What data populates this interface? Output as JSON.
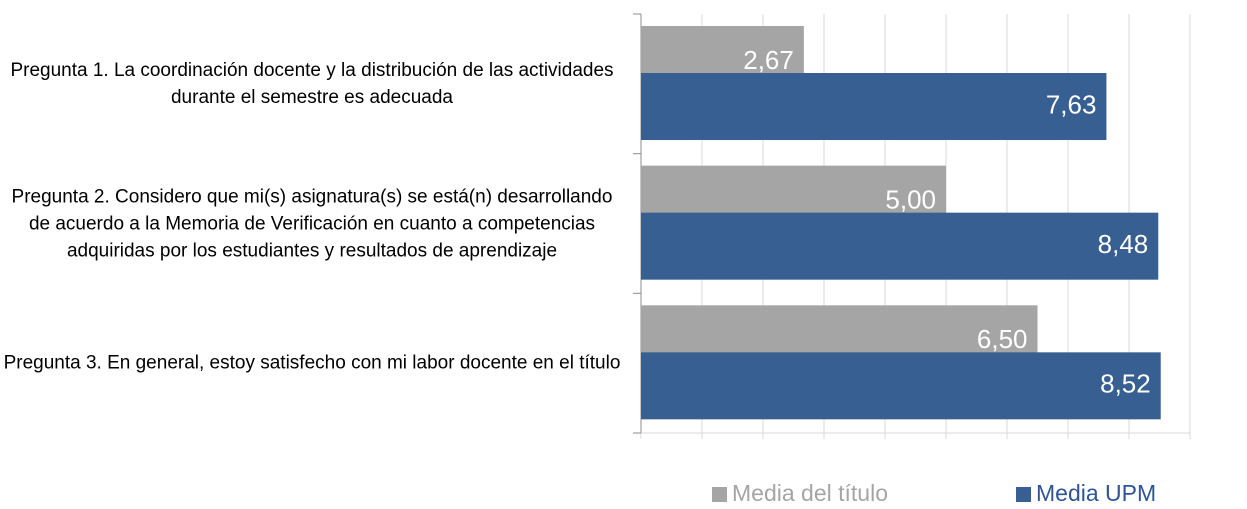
{
  "chart_data": {
    "type": "barh",
    "categories": [
      "Pregunta 1. La coordinación docente y la distribución de las actividades durante el semestre es adecuada",
      "Pregunta 2. Considero que mi(s) asignatura(s) se está(n) desarrollando de acuerdo a la Memoria de Verificación en cuanto a competencias adquiridas por los estudiantes y resultados de aprendizaje",
      "Pregunta 3. En general, estoy satisfecho con mi labor docente en el título"
    ],
    "series": [
      {
        "name": "Media del título",
        "color": "#a5a5a5",
        "values": [
          2.67,
          5.0,
          6.5
        ],
        "value_labels": [
          "2,67",
          "5,00",
          "6,50"
        ]
      },
      {
        "name": "Media UPM",
        "color": "#375f91",
        "values": [
          7.63,
          8.48,
          8.52
        ],
        "value_labels": [
          "7,63",
          "8,48",
          "8,52"
        ]
      }
    ],
    "xlim": [
      0,
      9
    ],
    "xticks": [
      0,
      1,
      2,
      3,
      4,
      5,
      6,
      7,
      8,
      9
    ],
    "grid": true,
    "legend": "bottom-right"
  }
}
